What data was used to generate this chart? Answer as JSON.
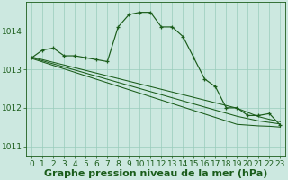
{
  "background_color": "#cce8e0",
  "grid_color": "#99ccbb",
  "line_color": "#1a5c1a",
  "xlabel": "Graphe pression niveau de la mer (hPa)",
  "xlabel_fontsize": 8,
  "tick_fontsize": 6.5,
  "ylim": [
    1010.75,
    1014.75
  ],
  "yticks": [
    1011,
    1012,
    1013,
    1014
  ],
  "xlim": [
    -0.5,
    23.5
  ],
  "xticks": [
    0,
    1,
    2,
    3,
    4,
    5,
    6,
    7,
    8,
    9,
    10,
    11,
    12,
    13,
    14,
    15,
    16,
    17,
    18,
    19,
    20,
    21,
    22,
    23
  ],
  "series_main": [
    1013.3,
    1013.5,
    1013.55,
    1013.35,
    1013.35,
    1013.3,
    1013.25,
    1013.2,
    1014.1,
    1014.42,
    1014.48,
    1014.48,
    1014.1,
    1014.1,
    1013.85,
    1013.3,
    1012.75,
    1012.55,
    1012.0,
    1012.0,
    1011.8,
    1011.8,
    1011.85,
    1011.55
  ],
  "series_diag1": [
    1013.28,
    1013.19,
    1013.1,
    1013.01,
    1012.92,
    1012.83,
    1012.74,
    1012.65,
    1012.56,
    1012.47,
    1012.38,
    1012.29,
    1012.2,
    1012.11,
    1012.02,
    1011.93,
    1011.84,
    1011.75,
    1011.66,
    1011.57,
    1011.55,
    1011.53,
    1011.52,
    1011.5
  ],
  "series_diag2": [
    1013.3,
    1013.22,
    1013.14,
    1013.06,
    1012.98,
    1012.9,
    1012.82,
    1012.74,
    1012.66,
    1012.58,
    1012.5,
    1012.42,
    1012.34,
    1012.26,
    1012.18,
    1012.1,
    1012.02,
    1011.94,
    1011.86,
    1011.78,
    1011.72,
    1011.66,
    1011.62,
    1011.58
  ],
  "series_diag3": [
    1013.32,
    1013.25,
    1013.18,
    1013.11,
    1013.04,
    1012.97,
    1012.9,
    1012.83,
    1012.76,
    1012.69,
    1012.62,
    1012.55,
    1012.48,
    1012.41,
    1012.34,
    1012.27,
    1012.2,
    1012.13,
    1012.06,
    1011.99,
    1011.88,
    1011.77,
    1011.7,
    1011.64
  ]
}
